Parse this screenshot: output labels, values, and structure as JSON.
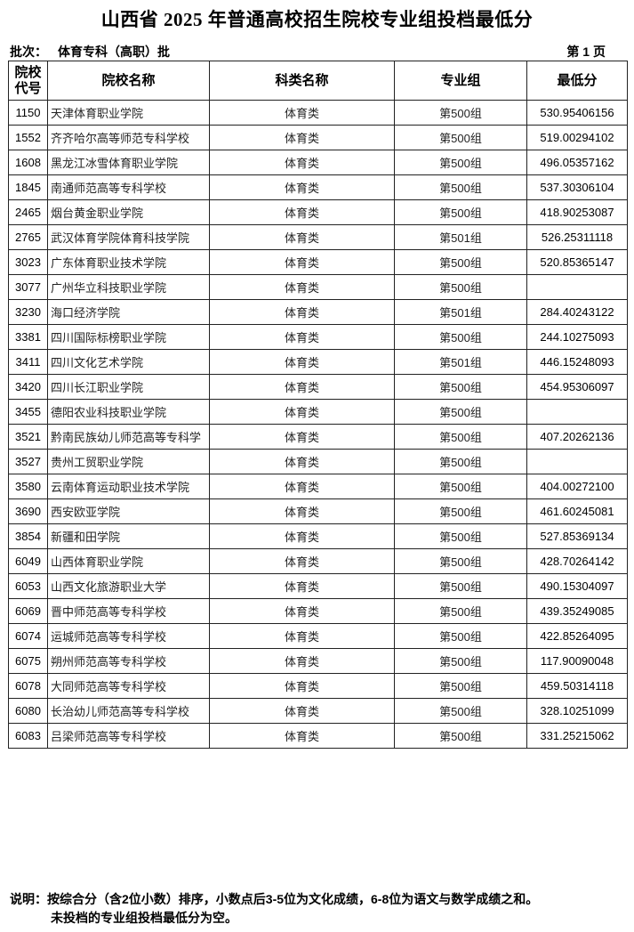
{
  "title": "山西省 2025 年普通高校招生院校专业组投档最低分",
  "batch_label": "批次：",
  "batch_value": "体育专科（高职）批",
  "page_label": "第 1 页",
  "columns": [
    "院校代号",
    "院校名称",
    "科类名称",
    "专业组",
    "最低分"
  ],
  "rows": [
    [
      "1150",
      "天津体育职业学院",
      "体育类",
      "第500组",
      "530.95406156"
    ],
    [
      "1552",
      "齐齐哈尔高等师范专科学校",
      "体育类",
      "第500组",
      "519.00294102"
    ],
    [
      "1608",
      "黑龙江冰雪体育职业学院",
      "体育类",
      "第500组",
      "496.05357162"
    ],
    [
      "1845",
      "南通师范高等专科学校",
      "体育类",
      "第500组",
      "537.30306104"
    ],
    [
      "2465",
      "烟台黄金职业学院",
      "体育类",
      "第500组",
      "418.90253087"
    ],
    [
      "2765",
      "武汉体育学院体育科技学院",
      "体育类",
      "第501组",
      "526.25311118"
    ],
    [
      "3023",
      "广东体育职业技术学院",
      "体育类",
      "第500组",
      "520.85365147"
    ],
    [
      "3077",
      "广州华立科技职业学院",
      "体育类",
      "第500组",
      ""
    ],
    [
      "3230",
      "海口经济学院",
      "体育类",
      "第501组",
      "284.40243122"
    ],
    [
      "3381",
      "四川国际标榜职业学院",
      "体育类",
      "第500组",
      "244.10275093"
    ],
    [
      "3411",
      "四川文化艺术学院",
      "体育类",
      "第501组",
      "446.15248093"
    ],
    [
      "3420",
      "四川长江职业学院",
      "体育类",
      "第500组",
      "454.95306097"
    ],
    [
      "3455",
      "德阳农业科技职业学院",
      "体育类",
      "第500组",
      ""
    ],
    [
      "3521",
      "黔南民族幼儿师范高等专科学",
      "体育类",
      "第500组",
      "407.20262136"
    ],
    [
      "3527",
      "贵州工贸职业学院",
      "体育类",
      "第500组",
      ""
    ],
    [
      "3580",
      "云南体育运动职业技术学院",
      "体育类",
      "第500组",
      "404.00272100"
    ],
    [
      "3690",
      "西安欧亚学院",
      "体育类",
      "第500组",
      "461.60245081"
    ],
    [
      "3854",
      "新疆和田学院",
      "体育类",
      "第500组",
      "527.85369134"
    ],
    [
      "6049",
      "山西体育职业学院",
      "体育类",
      "第500组",
      "428.70264142"
    ],
    [
      "6053",
      "山西文化旅游职业大学",
      "体育类",
      "第500组",
      "490.15304097"
    ],
    [
      "6069",
      "晋中师范高等专科学校",
      "体育类",
      "第500组",
      "439.35249085"
    ],
    [
      "6074",
      "运城师范高等专科学校",
      "体育类",
      "第500组",
      "422.85264095"
    ],
    [
      "6075",
      "朔州师范高等专科学校",
      "体育类",
      "第500组",
      "117.90090048"
    ],
    [
      "6078",
      "大同师范高等专科学校",
      "体育类",
      "第500组",
      "459.50314118"
    ],
    [
      "6080",
      "长治幼儿师范高等专科学校",
      "体育类",
      "第500组",
      "328.10251099"
    ],
    [
      "6083",
      "吕梁师范高等专科学校",
      "体育类",
      "第500组",
      "331.25215062"
    ]
  ],
  "notes": [
    "说明：按综合分（含2位小数）排序，小数点后3-5位为文化成绩，6-8位为语文与数学成绩之和。",
    "未投档的专业组投档最低分为空。"
  ]
}
